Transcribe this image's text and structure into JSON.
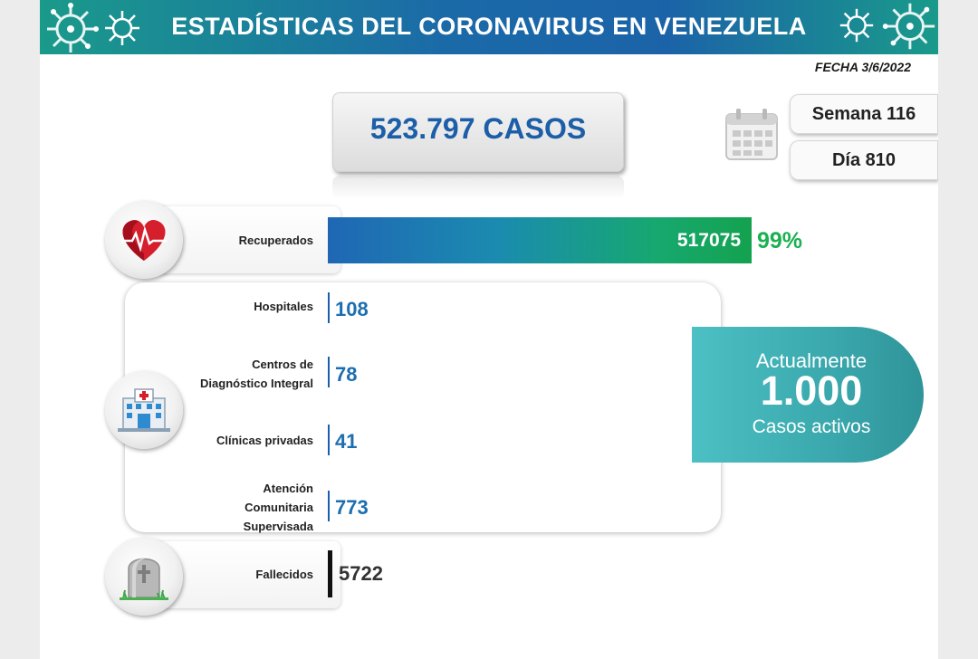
{
  "header": {
    "title": "ESTADÍSTICAS DEL CORONAVIRUS EN VENEZUELA",
    "date": "FECHA 3/6/2022"
  },
  "summary": {
    "total_cases": "523.797 CASOS",
    "week": "Semana 116",
    "day": "Día 810"
  },
  "active": {
    "line1": "Actualmente",
    "value": "1.000",
    "line3": "Casos activos"
  },
  "colors": {
    "brand_blue": "#1d5ea8",
    "recovered_green": "#1bb050",
    "active_teal": "#3aa8ad"
  },
  "icons": {
    "recovered": "heart-pulse-icon",
    "hospital": "hospital-building-icon",
    "deaths": "tombstone-icon",
    "calendar": "calendar-icon"
  },
  "chart_data": {
    "type": "bar",
    "categories": [
      "Recuperados",
      "Hospitales",
      "Centros de Diagnóstico Integral",
      "Clínicas privadas",
      "Atención Comunitaria Supervisada",
      "Fallecidos"
    ],
    "values": [
      517075,
      108,
      78,
      41,
      773,
      5722
    ],
    "value_labels": [
      "517075",
      "108",
      "78",
      "41",
      "773",
      "5722"
    ],
    "recovered_percent_label": "99%",
    "total": 523797
  }
}
